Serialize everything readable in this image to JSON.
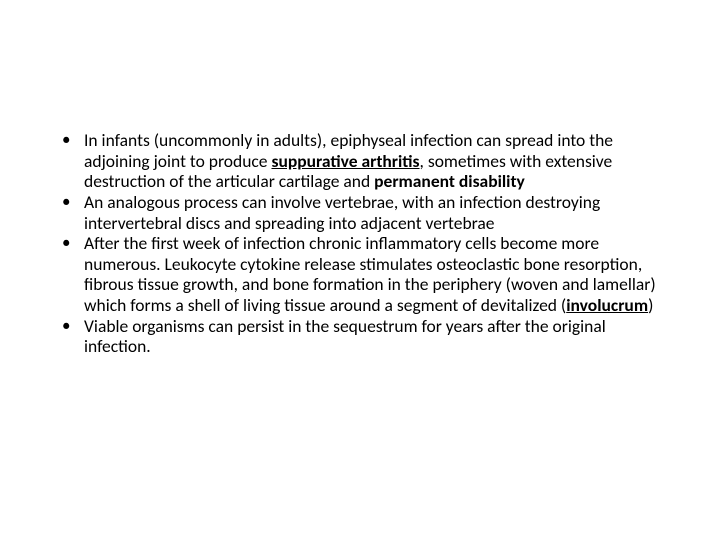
{
  "bullets": [
    {
      "pre1": "In infants (uncommonly in adults), epiphyseal infection can spread into the adjoining joint to produce ",
      "bu1": "suppurative arthritis",
      "mid1": ", sometimes with extensive destruction of the articular cartilage and ",
      "b1": "permanent disability"
    },
    {
      "text": "An analogous process can involve vertebrae, with an infection destroying intervertebral discs and spreading into adjacent vertebrae"
    },
    {
      "pre": "After the first week of infection chronic inflammatory cells become more numerous. Leukocyte cytokine release stimulates osteoclastic bone resorption, fibrous tissue growth, and bone formation in the periphery (woven and lamellar) which forms a shell of living tissue around a segment of devitalized  (",
      "bu": "involucrum",
      "post": ")"
    },
    {
      "text": "Viable organisms can persist in the sequestrum for years after the original infection."
    }
  ]
}
